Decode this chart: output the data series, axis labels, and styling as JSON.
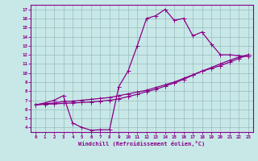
{
  "xlabel": "Windchill (Refroidissement éolien,°C)",
  "xlim": [
    -0.5,
    23.5
  ],
  "ylim": [
    3.5,
    17.5
  ],
  "xticks": [
    0,
    1,
    2,
    3,
    4,
    5,
    6,
    7,
    8,
    9,
    10,
    11,
    12,
    13,
    14,
    15,
    16,
    17,
    18,
    19,
    20,
    21,
    22,
    23
  ],
  "yticks": [
    4,
    5,
    6,
    7,
    8,
    9,
    10,
    11,
    12,
    13,
    14,
    15,
    16,
    17
  ],
  "bg_color": "#c8e8e8",
  "line_color": "#880088",
  "grid_color": "#99bbbb",
  "curve1_x": [
    0,
    1,
    2,
    3,
    4,
    5,
    6,
    7,
    8,
    9,
    10,
    11,
    12,
    13,
    14,
    15,
    16,
    17,
    18,
    19,
    20,
    21,
    22,
    23
  ],
  "curve1_y": [
    6.5,
    6.7,
    7.0,
    7.5,
    4.5,
    4.0,
    3.7,
    3.75,
    3.75,
    8.5,
    10.2,
    13.0,
    16.0,
    16.3,
    17.0,
    15.8,
    16.0,
    14.1,
    14.5,
    13.2,
    12.0,
    12.0,
    11.9,
    11.8
  ],
  "curve2_x": [
    0,
    1,
    2,
    3,
    4,
    5,
    6,
    7,
    8,
    9,
    10,
    11,
    12,
    13,
    14,
    15,
    16,
    17,
    18,
    19,
    20,
    21,
    22,
    23
  ],
  "curve2_y": [
    6.5,
    6.6,
    6.7,
    6.85,
    6.9,
    7.0,
    7.1,
    7.2,
    7.3,
    7.5,
    7.7,
    7.9,
    8.1,
    8.4,
    8.7,
    9.0,
    9.4,
    9.8,
    10.2,
    10.5,
    10.8,
    11.2,
    11.6,
    12.0
  ],
  "curve3_x": [
    0,
    1,
    2,
    3,
    4,
    5,
    6,
    7,
    8,
    9,
    10,
    11,
    12,
    13,
    14,
    15,
    16,
    17,
    18,
    19,
    20,
    21,
    22,
    23
  ],
  "curve3_y": [
    6.5,
    6.55,
    6.6,
    6.65,
    6.7,
    6.75,
    6.8,
    6.9,
    7.0,
    7.15,
    7.4,
    7.65,
    7.95,
    8.2,
    8.55,
    8.9,
    9.3,
    9.75,
    10.2,
    10.6,
    11.0,
    11.4,
    11.75,
    12.0
  ]
}
